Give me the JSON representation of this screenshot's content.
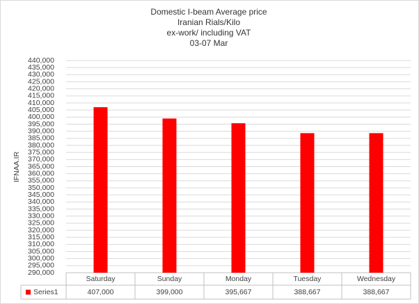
{
  "chart_data": {
    "type": "bar",
    "title": [
      "Domestic I-beam  Average  price",
      "Iranian  Rials/Kilo",
      "ex-work/ including VAT",
      "03-07  Mar"
    ],
    "y_label": "IFNAA.IR",
    "categories": [
      "Saturday",
      "Sunday",
      "Monday",
      "Tuesday",
      "Wednesday"
    ],
    "series": [
      {
        "name": "Series1",
        "color": "#ff0000",
        "values": [
          407000,
          399000,
          395667,
          388667,
          388667
        ],
        "value_labels": [
          "407,000",
          "399,000",
          "395,667",
          "388,667",
          "388,667"
        ]
      }
    ],
    "ylim": [
      290000,
      440000
    ],
    "yticks": [
      {
        "value": 290000,
        "label": "290,000"
      },
      {
        "value": 295000,
        "label": "295,000"
      },
      {
        "value": 300000,
        "label": "300,000"
      },
      {
        "value": 305000,
        "label": "305,000"
      },
      {
        "value": 310000,
        "label": "310,000"
      },
      {
        "value": 315000,
        "label": "315,000"
      },
      {
        "value": 320000,
        "label": "320,000"
      },
      {
        "value": 325000,
        "label": "325,000"
      },
      {
        "value": 330000,
        "label": "330,000"
      },
      {
        "value": 335000,
        "label": "335,000"
      },
      {
        "value": 340000,
        "label": "340,000"
      },
      {
        "value": 345000,
        "label": "345,000"
      },
      {
        "value": 350000,
        "label": "350,000"
      },
      {
        "value": 355000,
        "label": "355,000"
      },
      {
        "value": 360000,
        "label": "360,000"
      },
      {
        "value": 365000,
        "label": "365,000"
      },
      {
        "value": 370000,
        "label": "370,000"
      },
      {
        "value": 375000,
        "label": "375,000"
      },
      {
        "value": 380000,
        "label": "380,000"
      },
      {
        "value": 385000,
        "label": "385,000"
      },
      {
        "value": 390000,
        "label": "390,000"
      },
      {
        "value": 395000,
        "label": "395,000"
      },
      {
        "value": 400000,
        "label": "400,000"
      },
      {
        "value": 405000,
        "label": "405,000"
      },
      {
        "value": 410000,
        "label": "410,000"
      },
      {
        "value": 415000,
        "label": "415,000"
      },
      {
        "value": 420000,
        "label": "420,000"
      },
      {
        "value": 425000,
        "label": "425,000"
      },
      {
        "value": 430000,
        "label": "430,000"
      },
      {
        "value": 435000,
        "label": "435,000"
      },
      {
        "value": 440000,
        "label": "440,000"
      }
    ],
    "grid": true
  }
}
